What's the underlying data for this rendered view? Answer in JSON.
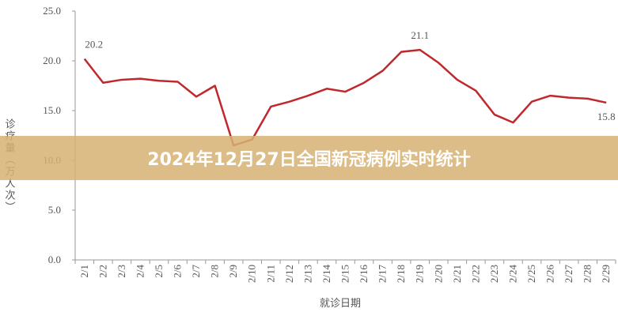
{
  "banner": {
    "title": "2024年12月27日全国新冠病例实时统计"
  },
  "chart_data": {
    "type": "line",
    "x_label": "就诊日期",
    "y_label": "诊疗量（万人次）",
    "categories": [
      "2/1",
      "2/2",
      "2/3",
      "2/4",
      "2/5",
      "2/6",
      "2/7",
      "2/8",
      "2/9",
      "2/10",
      "2/11",
      "2/12",
      "2/13",
      "2/14",
      "2/15",
      "2/16",
      "2/17",
      "2/18",
      "2/19",
      "2/20",
      "2/21",
      "2/22",
      "2/23",
      "2/24",
      "2/25",
      "2/26",
      "2/27",
      "2/28",
      "2/29"
    ],
    "series": [
      {
        "color": "#c0282d",
        "values": [
          20.2,
          17.8,
          18.1,
          18.2,
          18.0,
          17.9,
          16.4,
          17.5,
          11.5,
          12.1,
          15.4,
          15.9,
          16.5,
          17.2,
          16.9,
          17.8,
          19.0,
          20.9,
          21.1,
          19.8,
          18.1,
          17.0,
          14.6,
          13.8,
          15.9,
          16.5,
          16.3,
          16.2,
          15.8
        ],
        "value_labels": [
          "20.2",
          null,
          null,
          null,
          null,
          null,
          null,
          null,
          null,
          null,
          null,
          null,
          null,
          null,
          null,
          null,
          null,
          null,
          "21.1",
          null,
          null,
          null,
          null,
          null,
          null,
          null,
          null,
          null,
          "15.8"
        ]
      }
    ],
    "ylim": [
      0,
      25
    ],
    "yticks": [
      {
        "value": 0,
        "label": "0.0"
      },
      {
        "value": 5,
        "label": "5.0"
      },
      {
        "value": 10,
        "label": "10.0"
      },
      {
        "value": 15,
        "label": "15.0"
      },
      {
        "value": 20,
        "label": "20.0"
      },
      {
        "value": 25,
        "label": "25.0"
      }
    ]
  }
}
